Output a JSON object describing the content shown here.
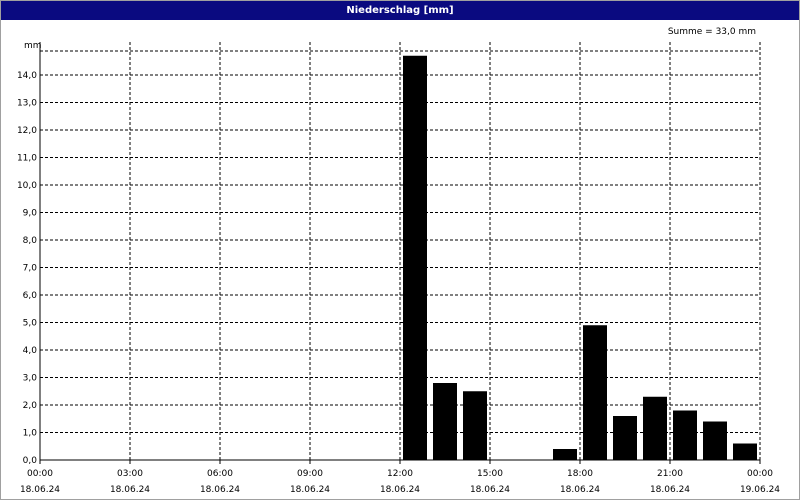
{
  "window": {
    "title": "Niederschlag [mm]"
  },
  "chart_data": {
    "type": "bar",
    "title": "Niederschlag [mm]",
    "ylabel": "mm",
    "annotation": "Summe = 33,0 mm",
    "x_range_hours": [
      0,
      24
    ],
    "ylim": [
      0,
      15.2
    ],
    "y_ticks": [
      "0,0",
      "1,0",
      "2,0",
      "3,0",
      "4,0",
      "5,0",
      "6,0",
      "7,0",
      "8,0",
      "9,0",
      "10,0",
      "11,0",
      "12,0",
      "13,0",
      "14,0"
    ],
    "x_ticks": [
      {
        "time": "00:00",
        "date": "18.06.24"
      },
      {
        "time": "03:00",
        "date": "18.06.24"
      },
      {
        "time": "06:00",
        "date": "18.06.24"
      },
      {
        "time": "09:00",
        "date": "18.06.24"
      },
      {
        "time": "12:00",
        "date": "18.06.24"
      },
      {
        "time": "15:00",
        "date": "18.06.24"
      },
      {
        "time": "18:00",
        "date": "18.06.24"
      },
      {
        "time": "21:00",
        "date": "18.06.24"
      },
      {
        "time": "00:00",
        "date": "19.06.24"
      }
    ],
    "grid": true,
    "bar_color": "#000000",
    "series": [
      {
        "bars": [
          {
            "start": "12:00",
            "end": "13:00",
            "value": 14.7
          },
          {
            "start": "13:00",
            "end": "14:00",
            "value": 2.8
          },
          {
            "start": "14:00",
            "end": "15:00",
            "value": 2.5
          },
          {
            "start": "17:00",
            "end": "18:00",
            "value": 0.4
          },
          {
            "start": "18:00",
            "end": "19:00",
            "value": 4.9
          },
          {
            "start": "19:00",
            "end": "20:00",
            "value": 1.6
          },
          {
            "start": "20:00",
            "end": "21:00",
            "value": 2.3
          },
          {
            "start": "21:00",
            "end": "22:00",
            "value": 1.8
          },
          {
            "start": "22:00",
            "end": "23:00",
            "value": 1.4
          },
          {
            "start": "23:00",
            "end": "00:00",
            "value": 0.6
          }
        ]
      }
    ]
  }
}
